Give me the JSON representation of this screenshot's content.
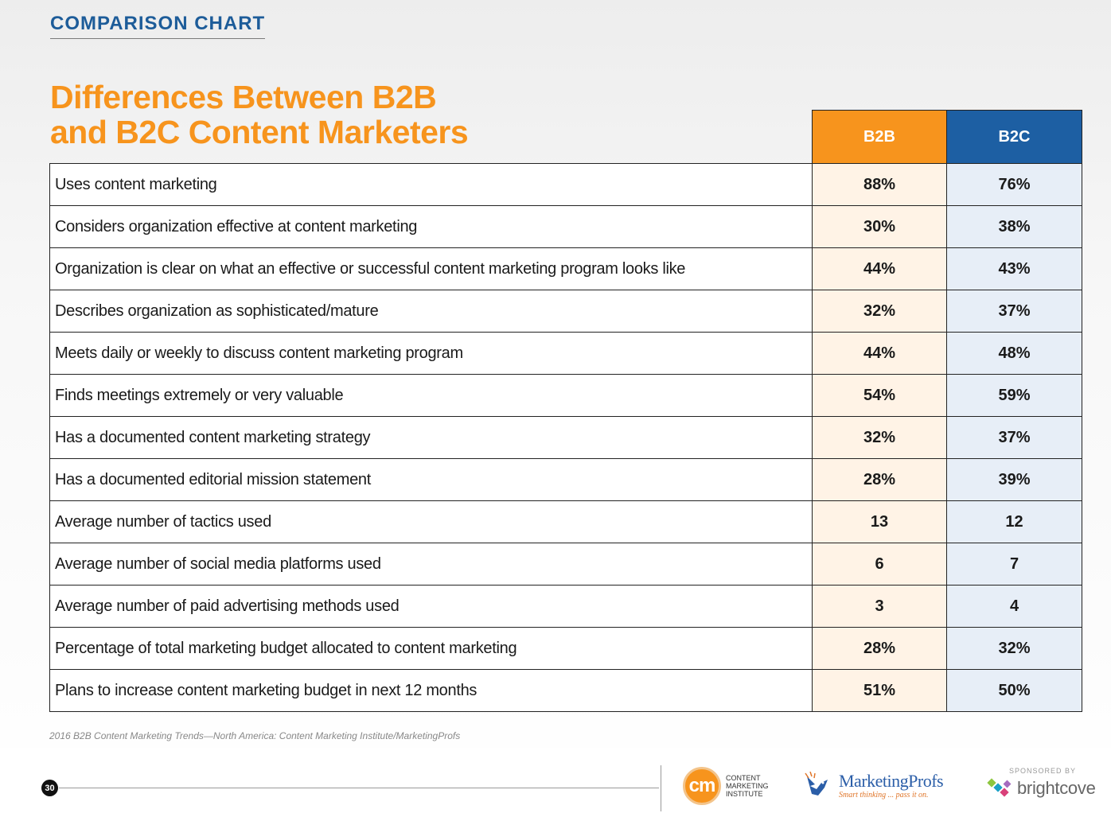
{
  "header": {
    "section_label": "COMPARISON CHART",
    "title_line1": "Differences Between B2B",
    "title_line2": "and B2C Content Marketers"
  },
  "table": {
    "columns": [
      "B2B",
      "B2C"
    ],
    "rows": [
      {
        "label": "Uses content marketing",
        "b2b": "88%",
        "b2c": "76%"
      },
      {
        "label": "Considers organization effective at content marketing",
        "b2b": "30%",
        "b2c": "38%"
      },
      {
        "label": "Organization is clear on what an effective or successful content marketing program looks like",
        "b2b": "44%",
        "b2c": "43%"
      },
      {
        "label": "Describes organization as sophisticated/mature",
        "b2b": "32%",
        "b2c": "37%"
      },
      {
        "label": "Meets daily or weekly to discuss content marketing program",
        "b2b": "44%",
        "b2c": "48%"
      },
      {
        "label": "Finds meetings extremely or very valuable",
        "b2b": "54%",
        "b2c": "59%"
      },
      {
        "label": "Has a documented content marketing strategy",
        "b2b": "32%",
        "b2c": "37%"
      },
      {
        "label": "Has a documented editorial mission statement",
        "b2b": "28%",
        "b2c": "39%"
      },
      {
        "label": "Average number of tactics used",
        "b2b": "13",
        "b2c": "12"
      },
      {
        "label": "Average number of social media platforms used",
        "b2b": "6",
        "b2c": "7"
      },
      {
        "label": "Average number of paid advertising methods used",
        "b2b": "3",
        "b2c": "4"
      },
      {
        "label": "Percentage of total marketing budget allocated to content marketing",
        "b2b": "28%",
        "b2c": "32%"
      },
      {
        "label": "Plans to increase content marketing budget in next 12 months",
        "b2b": "51%",
        "b2c": "50%"
      }
    ]
  },
  "source": "2016 B2B Content Marketing Trends—North America: Content Marketing Institute/MarketingProfs",
  "footer": {
    "page_number": "30",
    "cmi_mark": "cm",
    "cmi_line1": "CONTENT",
    "cmi_line2": "MARKETING",
    "cmi_line3": "INSTITUTE",
    "mp_name": "MarketingProfs",
    "mp_tagline": "Smart thinking ... pass it on.",
    "sponsor_label": "SPONSORED BY",
    "sponsor_name": "brightcove"
  },
  "colors": {
    "accent_orange": "#f7941d",
    "accent_blue": "#1d5fa3",
    "label_blue": "#1d5c99"
  }
}
